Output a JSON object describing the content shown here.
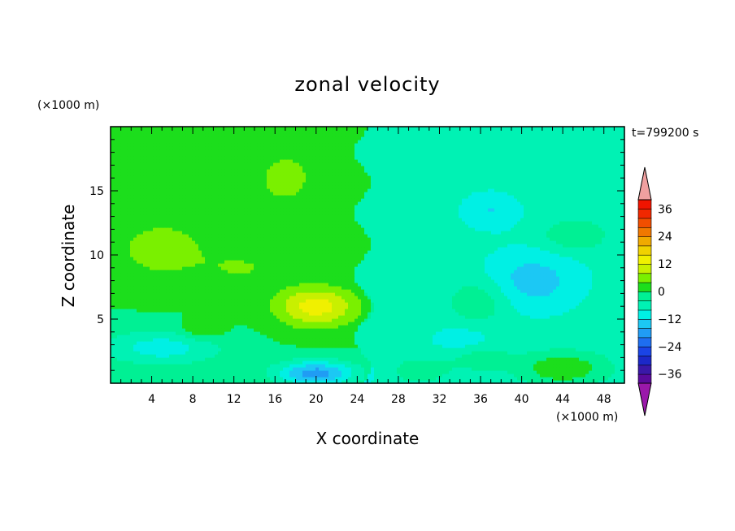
{
  "chart_data": {
    "type": "heatmap",
    "title": "zonal velocity",
    "xlabel": "X coordinate",
    "ylabel": "Z coordinate",
    "x_unit": "(×1000 m)",
    "y_unit": "(×1000 m)",
    "time_label": "t=799200 s",
    "xlim": [
      0,
      50
    ],
    "ylim": [
      0,
      20
    ],
    "x_ticks": [
      4,
      8,
      12,
      16,
      20,
      24,
      28,
      32,
      36,
      40,
      44,
      48
    ],
    "y_ticks": [
      5,
      10,
      15
    ],
    "colorbar": {
      "levels": [
        -40,
        -36,
        -32,
        -28,
        -24,
        -20,
        -16,
        -12,
        -8,
        -4,
        0,
        4,
        8,
        12,
        16,
        20,
        24,
        28,
        32,
        36,
        40
      ],
      "tick_values": [
        36,
        24,
        12,
        0,
        -12,
        -24,
        -36
      ],
      "colors": [
        "#5a0a9c",
        "#3a18a8",
        "#1c28c8",
        "#1a44e6",
        "#1e6ef0",
        "#209cf4",
        "#1cc8f4",
        "#00f0e4",
        "#00f2b4",
        "#00f094",
        "#1cde1c",
        "#7af000",
        "#c8f000",
        "#f0f000",
        "#f0d200",
        "#f0aa00",
        "#f07800",
        "#f04e00",
        "#f02800",
        "#f01400"
      ],
      "under_color": "#9a18aa",
      "over_color": "#f0a0a0"
    },
    "field": {
      "background": 0,
      "blobs": [
        {
          "x": 5,
          "z": 10.5,
          "sx": 5,
          "sz": 2.5,
          "a": 6
        },
        {
          "x": 13,
          "z": 9,
          "sx": 4,
          "sz": 1.5,
          "a": 4
        },
        {
          "x": 20,
          "z": 6,
          "sx": 4,
          "sz": 1.6,
          "a": 14
        },
        {
          "x": 9,
          "z": 4.2,
          "sx": 2,
          "sz": 0.8,
          "a": 6
        },
        {
          "x": 17,
          "z": 16,
          "sx": 4,
          "sz": 3,
          "a": 5
        },
        {
          "x": 45,
          "z": 11.5,
          "sx": 3,
          "sz": 1.2,
          "a": 6
        },
        {
          "x": 36,
          "z": 6.5,
          "sx": 3,
          "sz": 1.8,
          "a": 6
        },
        {
          "x": 44,
          "z": 1.2,
          "sx": 4,
          "sz": 1.2,
          "a": 10
        },
        {
          "x": 30,
          "z": 1,
          "sx": 3,
          "sz": 1,
          "a": 4
        },
        {
          "x": 36,
          "z": 2,
          "sx": 3,
          "sz": 1,
          "a": 4
        },
        {
          "x": 5,
          "z": 2.8,
          "sx": 6,
          "sz": 1.4,
          "a": -10
        },
        {
          "x": 20,
          "z": 0.8,
          "sx": 4,
          "sz": 1,
          "a": -18
        },
        {
          "x": 41,
          "z": 8,
          "sx": 5,
          "sz": 2.5,
          "a": -8
        },
        {
          "x": 37,
          "z": 13.5,
          "sx": 3,
          "sz": 1.5,
          "a": -6
        },
        {
          "x": 34,
          "z": 3.5,
          "sx": 3,
          "sz": 1,
          "a": -5
        }
      ],
      "east_offset": -6,
      "east_boundary_x": 24.5
    }
  }
}
